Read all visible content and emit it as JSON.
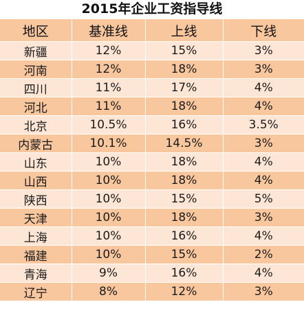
{
  "chart_data": {
    "type": "table",
    "title": "2015年企业工资指导线",
    "columns": [
      "地区",
      "基准线",
      "上线",
      "下线"
    ],
    "rows": [
      [
        "新疆",
        "12%",
        "15%",
        "3%"
      ],
      [
        "河南",
        "12%",
        "18%",
        "3%"
      ],
      [
        "四川",
        "11%",
        "17%",
        "4%"
      ],
      [
        "河北",
        "11%",
        "18%",
        "4%"
      ],
      [
        "北京",
        "10.5%",
        "16%",
        "3.5%"
      ],
      [
        "内蒙古",
        "10.1%",
        "14.5%",
        "3%"
      ],
      [
        "山东",
        "10%",
        "18%",
        "4%"
      ],
      [
        "山西",
        "10%",
        "18%",
        "4%"
      ],
      [
        "陕西",
        "10%",
        "15%",
        "5%"
      ],
      [
        "天津",
        "10%",
        "18%",
        "3%"
      ],
      [
        "上海",
        "10%",
        "16%",
        "4%"
      ],
      [
        "福建",
        "10%",
        "15%",
        "2%"
      ],
      [
        "青海",
        "9%",
        "16%",
        "4%"
      ],
      [
        "辽宁",
        "8%",
        "12%",
        "3%"
      ]
    ]
  },
  "colors": {
    "row_dark": "#f9c79e",
    "row_light": "#fde6d5",
    "grid_line": "#ffffff",
    "text": "#1a1a1a"
  }
}
